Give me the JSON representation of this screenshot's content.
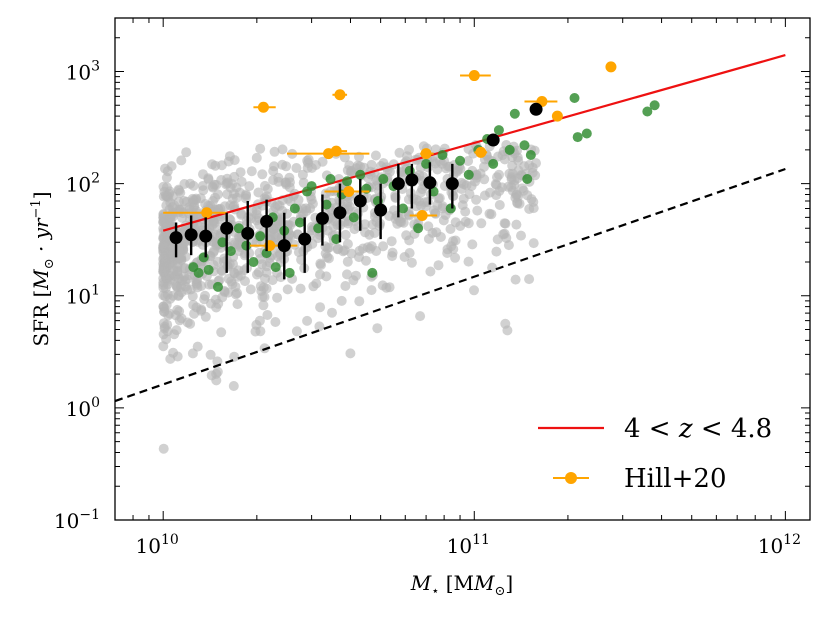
{
  "chart_data": {
    "type": "scatter",
    "x_scale": "log",
    "y_scale": "log",
    "xlim": [
      7000000000.0,
      1200000000000.0
    ],
    "ylim": [
      0.1,
      3000
    ],
    "x_ticks": [
      {
        "value": 10000000000.0,
        "base": "10",
        "exp": "10"
      },
      {
        "value": 100000000000.0,
        "base": "10",
        "exp": "11"
      },
      {
        "value": 1000000000000.0,
        "base": "10",
        "exp": "12"
      }
    ],
    "y_ticks": [
      {
        "value": 0.1,
        "base": "10",
        "exp": "−1"
      },
      {
        "value": 1,
        "base": "10",
        "exp": "0"
      },
      {
        "value": 10,
        "base": "10",
        "exp": "1"
      },
      {
        "value": 100,
        "base": "10",
        "exp": "2"
      },
      {
        "value": 1000,
        "base": "10",
        "exp": "3"
      }
    ],
    "xlabel": {
      "main": "M",
      "sub": "⋆",
      "unit": " [M",
      "unit_sub": "⊙",
      "close": "]"
    },
    "ylabel": {
      "prefix": "SFR [",
      "main": "M",
      "sub": "⊙",
      "mid": " · yr",
      "sup": "−1",
      "close": "]"
    },
    "legend": {
      "placement": "lower-right",
      "entries": [
        {
          "label_parts": [
            "4 < ",
            "z",
            " < 4.8"
          ],
          "kind": "line",
          "color": "#ee1111"
        },
        {
          "label_parts": [
            "Hill+20"
          ],
          "kind": "errorbar",
          "color": "#ffa500"
        }
      ]
    },
    "series": [
      {
        "name": "main-sequence-line",
        "kind": "line",
        "color": "#ee1111",
        "points": [
          {
            "x": 10000000000.0,
            "y": 38
          },
          {
            "x": 1000000000000.0,
            "y": 1400
          }
        ]
      },
      {
        "name": "reference-dashed-line",
        "kind": "line",
        "style": "dashed",
        "color": "#000000",
        "points": [
          {
            "x": 7000000000.0,
            "y": 1.15
          },
          {
            "x": 1000000000000.0,
            "y": 135
          }
        ]
      },
      {
        "name": "green-points",
        "kind": "scatter",
        "color": "#2e8b2e",
        "points": [
          {
            "x": 12500000000.0,
            "y": 18
          },
          {
            "x": 13000000000.0,
            "y": 16
          },
          {
            "x": 13500000000.0,
            "y": 22
          },
          {
            "x": 14000000000.0,
            "y": 17
          },
          {
            "x": 15000000000.0,
            "y": 12
          },
          {
            "x": 15500000000.0,
            "y": 30
          },
          {
            "x": 16500000000.0,
            "y": 25
          },
          {
            "x": 17500000000.0,
            "y": 40
          },
          {
            "x": 18500000000.0,
            "y": 28
          },
          {
            "x": 19500000000.0,
            "y": 20
          },
          {
            "x": 20500000000.0,
            "y": 34
          },
          {
            "x": 21500000000.0,
            "y": 24
          },
          {
            "x": 22500000000.0,
            "y": 50
          },
          {
            "x": 23000000000.0,
            "y": 18
          },
          {
            "x": 24500000000.0,
            "y": 38
          },
          {
            "x": 25500000000.0,
            "y": 16
          },
          {
            "x": 26500000000.0,
            "y": 60
          },
          {
            "x": 27500000000.0,
            "y": 45
          },
          {
            "x": 29000000000.0,
            "y": 85
          },
          {
            "x": 30000000000.0,
            "y": 95
          },
          {
            "x": 31500000000.0,
            "y": 40
          },
          {
            "x": 33500000000.0,
            "y": 65
          },
          {
            "x": 34500000000.0,
            "y": 110
          },
          {
            "x": 36000000000.0,
            "y": 32
          },
          {
            "x": 37500000000.0,
            "y": 80
          },
          {
            "x": 39000000000.0,
            "y": 105
          },
          {
            "x": 41000000000.0,
            "y": 50
          },
          {
            "x": 43000000000.0,
            "y": 120
          },
          {
            "x": 45000000000.0,
            "y": 90
          },
          {
            "x": 47000000000.0,
            "y": 16
          },
          {
            "x": 49000000000.0,
            "y": 70
          },
          {
            "x": 51000000000.0,
            "y": 110
          },
          {
            "x": 55000000000.0,
            "y": 95
          },
          {
            "x": 59000000000.0,
            "y": 60
          },
          {
            "x": 62000000000.0,
            "y": 130
          },
          {
            "x": 66000000000.0,
            "y": 40
          },
          {
            "x": 70000000000.0,
            "y": 150
          },
          {
            "x": 74000000000.0,
            "y": 85
          },
          {
            "x": 79000000000.0,
            "y": 180
          },
          {
            "x": 84000000000.0,
            "y": 60
          },
          {
            "x": 90000000000.0,
            "y": 160
          },
          {
            "x": 96000000000.0,
            "y": 120
          },
          {
            "x": 103000000000.0,
            "y": 200
          },
          {
            "x": 110000000000.0,
            "y": 250
          },
          {
            "x": 115000000000.0,
            "y": 150
          },
          {
            "x": 120000000000.0,
            "y": 300
          },
          {
            "x": 130000000000.0,
            "y": 200
          },
          {
            "x": 135000000000.0,
            "y": 420
          },
          {
            "x": 145000000000.0,
            "y": 220
          },
          {
            "x": 148000000000.0,
            "y": 110
          },
          {
            "x": 152000000000.0,
            "y": 180
          },
          {
            "x": 210000000000.0,
            "y": 580
          },
          {
            "x": 215000000000.0,
            "y": 260
          },
          {
            "x": 230000000000.0,
            "y": 280
          },
          {
            "x": 360000000000.0,
            "y": 440
          },
          {
            "x": 380000000000.0,
            "y": 500
          }
        ]
      },
      {
        "name": "hill20",
        "kind": "errorbar",
        "color": "#ffa500",
        "points": [
          {
            "x": 13800000000.0,
            "y": 55,
            "x_lo": 10000000000.0,
            "x_hi": 16000000000.0
          },
          {
            "x": 21000000000.0,
            "y": 480,
            "x_lo": 19500000000.0,
            "x_hi": 23000000000.0
          },
          {
            "x": 22000000000.0,
            "y": 28,
            "x_lo": 19000000000.0,
            "x_hi": 27000000000.0
          },
          {
            "x": 34000000000.0,
            "y": 185,
            "x_lo": 25000000000.0,
            "x_hi": 46000000000.0
          },
          {
            "x": 36000000000.0,
            "y": 195,
            "x_lo": 34000000000.0,
            "x_hi": 39000000000.0
          },
          {
            "x": 37000000000.0,
            "y": 620,
            "x_lo": 35000000000.0,
            "x_hi": 39000000000.0
          },
          {
            "x": 39500000000.0,
            "y": 85,
            "x_lo": 33000000000.0,
            "x_hi": 46000000000.0
          },
          {
            "x": 68000000000.0,
            "y": 52,
            "x_lo": 62000000000.0,
            "x_hi": 76000000000.0
          },
          {
            "x": 70000000000.0,
            "y": 185,
            "x_lo": 67000000000.0,
            "x_hi": 74000000000.0
          },
          {
            "x": 100000000000.0,
            "y": 920,
            "x_lo": 90000000000.0,
            "x_hi": 113000000000.0
          },
          {
            "x": 105000000000.0,
            "y": 190,
            "x_lo": 100000000000.0,
            "x_hi": 110000000000.0
          },
          {
            "x": 165000000000.0,
            "y": 540,
            "x_lo": 145000000000.0,
            "x_hi": 185000000000.0
          },
          {
            "x": 185000000000.0,
            "y": 400,
            "x_lo": 178000000000.0,
            "x_hi": 192000000000.0
          },
          {
            "x": 275000000000.0,
            "y": 1100,
            "x_lo": 265000000000.0,
            "x_hi": 285000000000.0
          }
        ]
      },
      {
        "name": "binned-median",
        "kind": "errorbar",
        "color": "#000000",
        "points": [
          {
            "x": 11000000000.0,
            "y": 33,
            "y_lo": 22,
            "y_hi": 45
          },
          {
            "x": 12300000000.0,
            "y": 35,
            "y_lo": 23,
            "y_hi": 52
          },
          {
            "x": 13700000000.0,
            "y": 34,
            "y_lo": 22,
            "y_hi": 50
          },
          {
            "x": 16000000000.0,
            "y": 40,
            "y_lo": 16,
            "y_hi": 55
          },
          {
            "x": 18700000000.0,
            "y": 36,
            "y_lo": 16,
            "y_hi": 70
          },
          {
            "x": 21500000000.0,
            "y": 46,
            "y_lo": 25,
            "y_hi": 72
          },
          {
            "x": 24500000000.0,
            "y": 28,
            "y_lo": 14,
            "y_hi": 55
          },
          {
            "x": 28500000000.0,
            "y": 32,
            "y_lo": 16,
            "y_hi": 50
          },
          {
            "x": 32500000000.0,
            "y": 49,
            "y_lo": 28,
            "y_hi": 80
          },
          {
            "x": 37000000000.0,
            "y": 55,
            "y_lo": 30,
            "y_hi": 100
          },
          {
            "x": 43000000000.0,
            "y": 70,
            "y_lo": 38,
            "y_hi": 110
          },
          {
            "x": 50000000000.0,
            "y": 58,
            "y_lo": 32,
            "y_hi": 100
          },
          {
            "x": 57000000000.0,
            "y": 100,
            "y_lo": 50,
            "y_hi": 150
          },
          {
            "x": 63000000000.0,
            "y": 108,
            "y_lo": 60,
            "y_hi": 150
          },
          {
            "x": 72000000000.0,
            "y": 102,
            "y_lo": 65,
            "y_hi": 155
          },
          {
            "x": 85000000000.0,
            "y": 100,
            "y_lo": 60,
            "y_hi": 150
          },
          {
            "x": 115000000000.0,
            "y": 245,
            "y_lo": 225,
            "y_hi": 265
          },
          {
            "x": 158000000000.0,
            "y": 460,
            "y_lo": 440,
            "y_hi": 480
          }
        ]
      }
    ]
  }
}
